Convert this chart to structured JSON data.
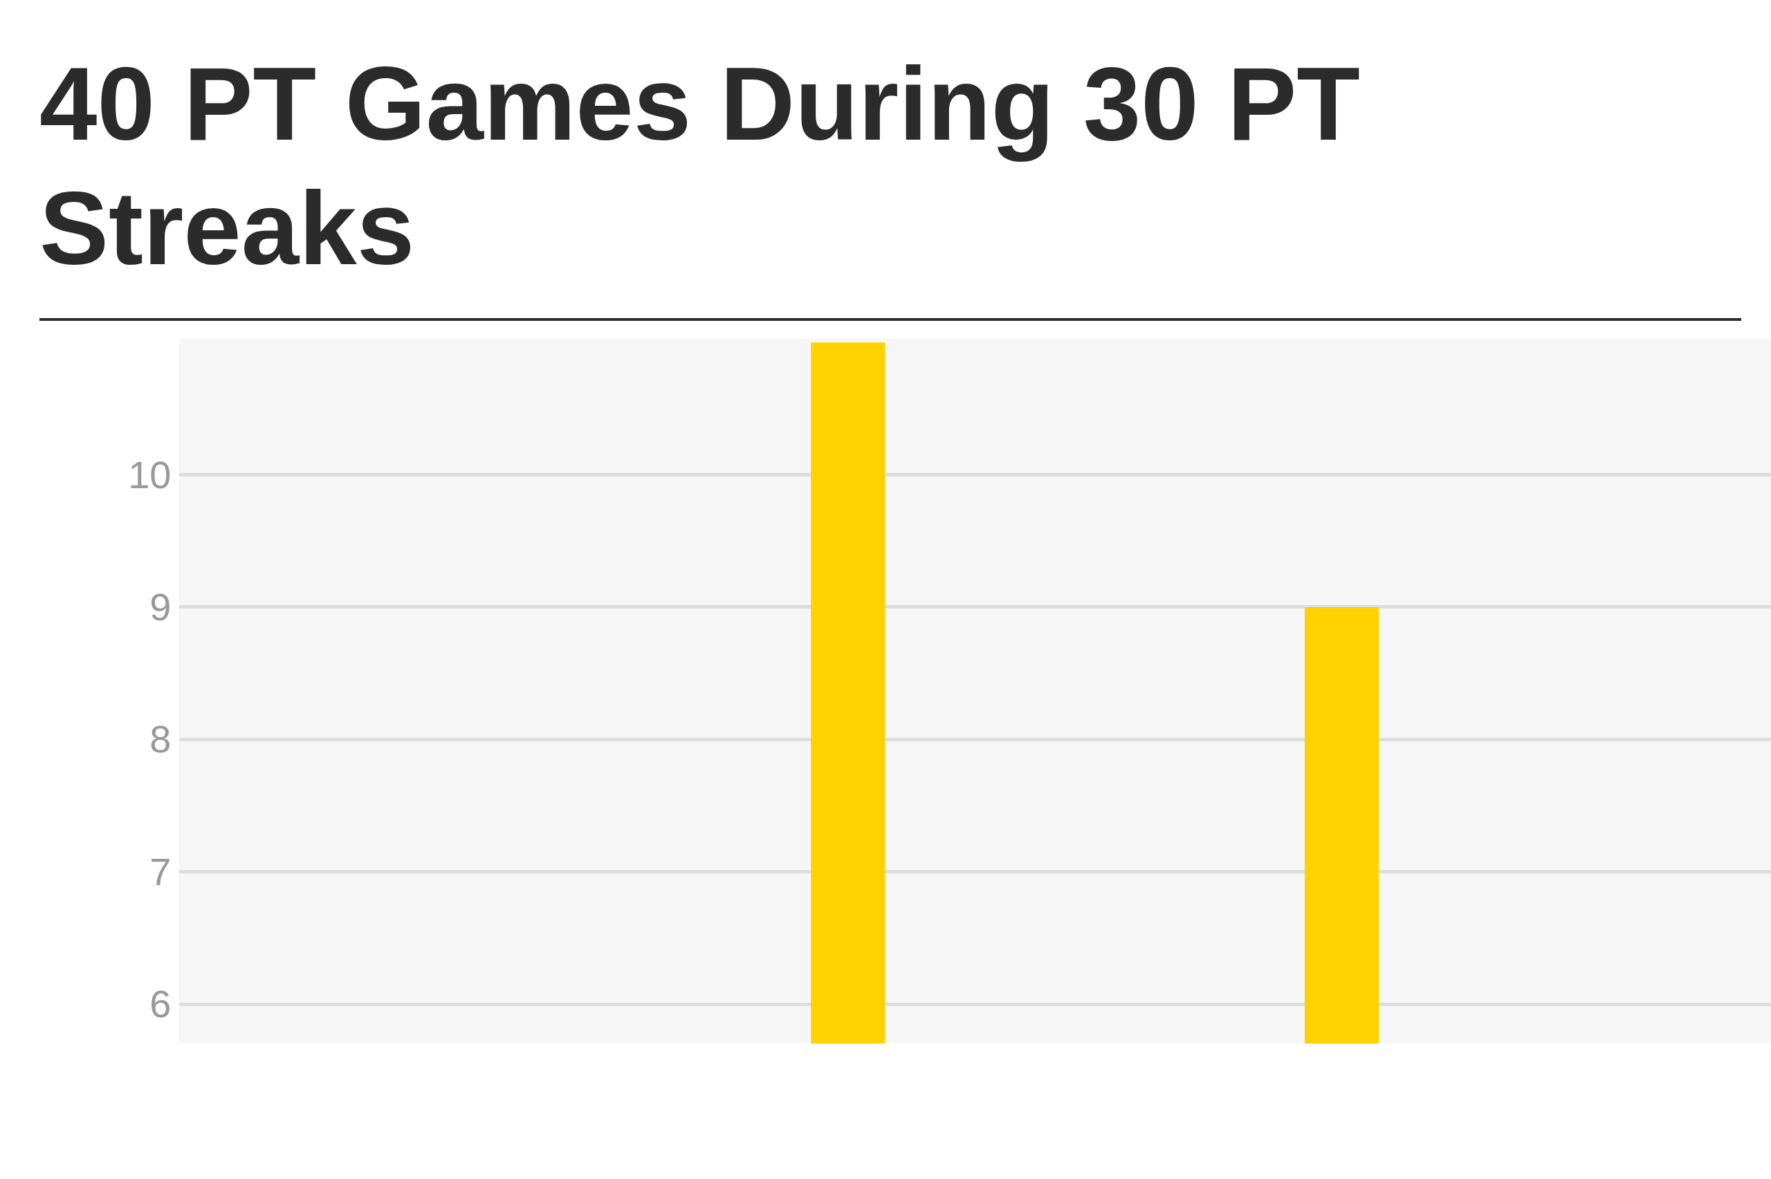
{
  "chart_data": {
    "type": "bar",
    "title": "40 PT Games During 30 PT Streaks",
    "categories": [
      null,
      null
    ],
    "values": [
      11,
      9
    ],
    "color": "#ffd200",
    "ylim": [
      5.7,
      11.03
    ],
    "yticks": [
      6,
      7,
      8,
      9,
      10
    ],
    "grid": "y",
    "tick_labels": "y"
  }
}
